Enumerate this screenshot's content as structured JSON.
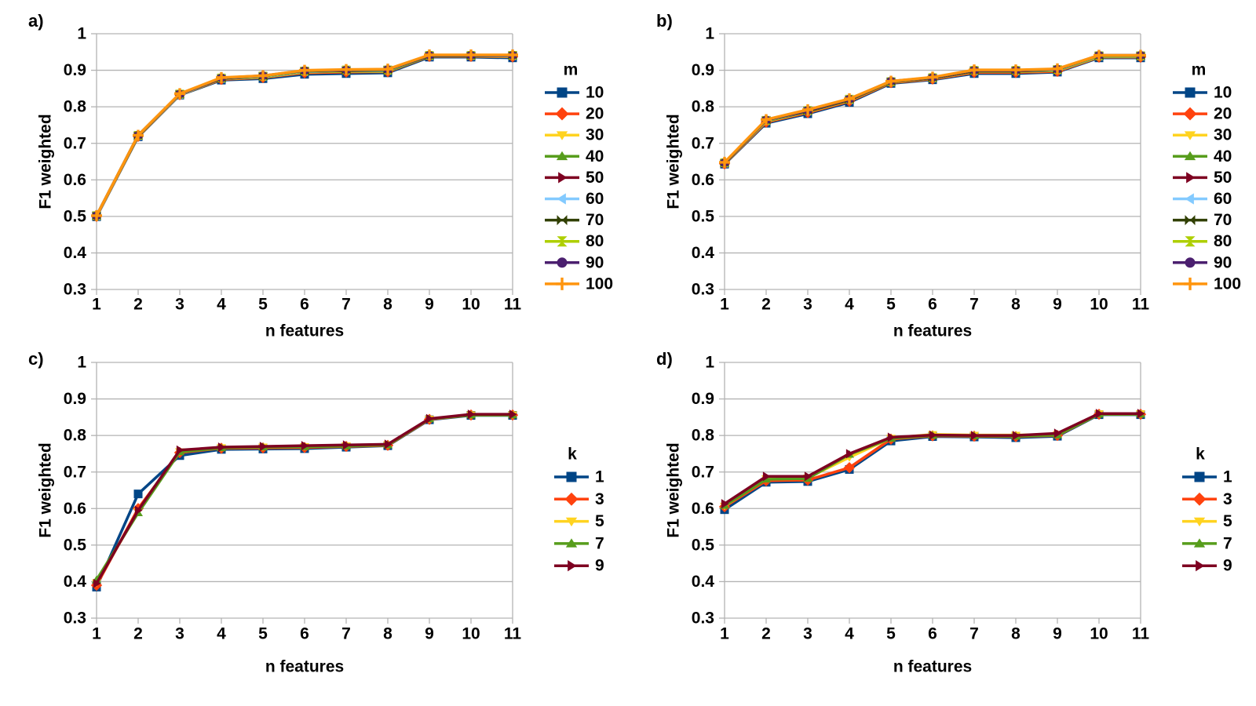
{
  "page": {
    "background": "#ffffff",
    "text_color": "#000000",
    "grid_color": "#b3b3b3"
  },
  "chart_data": [
    {
      "type": "line",
      "panel": "a)",
      "xlabel": "n features",
      "ylabel": "F1 weighted",
      "x": [
        1,
        2,
        3,
        4,
        5,
        6,
        7,
        8,
        9,
        10,
        11
      ],
      "xtick_labels": [
        "1",
        "2",
        "3",
        "4",
        "5",
        "6",
        "7",
        "8",
        "9",
        "10",
        "11"
      ],
      "ylim": [
        0.3,
        1.0
      ],
      "ytick_values": [
        0.3,
        0.4,
        0.5,
        0.6,
        0.7,
        0.8,
        0.9,
        1.0
      ],
      "ytick_labels": [
        "0.3",
        "0.4",
        "0.5",
        "0.6",
        "0.7",
        "0.8",
        "0.9",
        "1"
      ],
      "grid": "horizontal",
      "legend_position": "right",
      "legend_title": "m",
      "series": [
        {
          "name": "10",
          "color": "#004586",
          "marker": "square",
          "values": [
            0.499,
            0.718,
            0.832,
            0.873,
            0.877,
            0.889,
            0.891,
            0.893,
            0.936,
            0.936,
            0.934
          ]
        },
        {
          "name": "20",
          "color": "#FF420E",
          "marker": "diamond",
          "values": [
            0.5,
            0.719,
            0.833,
            0.875,
            0.88,
            0.893,
            0.895,
            0.896,
            0.938,
            0.938,
            0.937
          ]
        },
        {
          "name": "30",
          "color": "#FFD320",
          "marker": "triangle-down",
          "values": [
            0.5,
            0.72,
            0.833,
            0.876,
            0.881,
            0.895,
            0.897,
            0.897,
            0.939,
            0.939,
            0.938
          ]
        },
        {
          "name": "40",
          "color": "#579D1C",
          "marker": "triangle-up",
          "values": [
            0.501,
            0.72,
            0.834,
            0.877,
            0.882,
            0.896,
            0.898,
            0.898,
            0.939,
            0.939,
            0.939
          ]
        },
        {
          "name": "50",
          "color": "#7E0021",
          "marker": "triangle-right",
          "values": [
            0.501,
            0.721,
            0.834,
            0.877,
            0.883,
            0.897,
            0.899,
            0.9,
            0.94,
            0.94,
            0.94
          ]
        },
        {
          "name": "60",
          "color": "#83CAFF",
          "marker": "triangle-left",
          "values": [
            0.501,
            0.721,
            0.834,
            0.878,
            0.883,
            0.897,
            0.9,
            0.9,
            0.94,
            0.94,
            0.94
          ]
        },
        {
          "name": "70",
          "color": "#314004",
          "marker": "bowtie",
          "values": [
            0.502,
            0.721,
            0.835,
            0.878,
            0.884,
            0.898,
            0.9,
            0.901,
            0.94,
            0.94,
            0.941
          ]
        },
        {
          "name": "80",
          "color": "#AECF00",
          "marker": "hourglass",
          "values": [
            0.502,
            0.722,
            0.835,
            0.879,
            0.884,
            0.898,
            0.901,
            0.901,
            0.941,
            0.941,
            0.941
          ]
        },
        {
          "name": "90",
          "color": "#4B1F6F",
          "marker": "circle",
          "values": [
            0.502,
            0.722,
            0.835,
            0.879,
            0.885,
            0.899,
            0.901,
            0.902,
            0.941,
            0.941,
            0.941
          ]
        },
        {
          "name": "100",
          "color": "#FF950E",
          "marker": "plus",
          "values": [
            0.502,
            0.722,
            0.836,
            0.88,
            0.885,
            0.9,
            0.902,
            0.903,
            0.942,
            0.942,
            0.942
          ]
        }
      ]
    },
    {
      "type": "line",
      "panel": "b)",
      "xlabel": "n features",
      "ylabel": "F1 weighted",
      "x": [
        1,
        2,
        3,
        4,
        5,
        6,
        7,
        8,
        9,
        10,
        11
      ],
      "xtick_labels": [
        "1",
        "2",
        "3",
        "4",
        "5",
        "6",
        "7",
        "8",
        "9",
        "10",
        "11"
      ],
      "ylim": [
        0.3,
        1.0
      ],
      "ytick_values": [
        0.3,
        0.4,
        0.5,
        0.6,
        0.7,
        0.8,
        0.9,
        1.0
      ],
      "ytick_labels": [
        "0.3",
        "0.4",
        "0.5",
        "0.6",
        "0.7",
        "0.8",
        "0.9",
        "1"
      ],
      "grid": "horizontal",
      "legend_position": "right",
      "legend_title": "m",
      "series": [
        {
          "name": "10",
          "color": "#004586",
          "marker": "square",
          "values": [
            0.643,
            0.755,
            0.781,
            0.812,
            0.864,
            0.874,
            0.891,
            0.891,
            0.895,
            0.934,
            0.934
          ]
        },
        {
          "name": "20",
          "color": "#FF420E",
          "marker": "diamond",
          "values": [
            0.644,
            0.758,
            0.784,
            0.815,
            0.866,
            0.876,
            0.894,
            0.894,
            0.897,
            0.936,
            0.936
          ]
        },
        {
          "name": "30",
          "color": "#FFD320",
          "marker": "triangle-down",
          "values": [
            0.645,
            0.76,
            0.786,
            0.817,
            0.867,
            0.877,
            0.896,
            0.896,
            0.899,
            0.937,
            0.937
          ]
        },
        {
          "name": "40",
          "color": "#579D1C",
          "marker": "triangle-up",
          "values": [
            0.645,
            0.761,
            0.787,
            0.818,
            0.868,
            0.878,
            0.897,
            0.897,
            0.9,
            0.938,
            0.938
          ]
        },
        {
          "name": "50",
          "color": "#7E0021",
          "marker": "triangle-right",
          "values": [
            0.646,
            0.762,
            0.788,
            0.819,
            0.868,
            0.878,
            0.898,
            0.898,
            0.901,
            0.939,
            0.939
          ]
        },
        {
          "name": "60",
          "color": "#83CAFF",
          "marker": "triangle-left",
          "values": [
            0.646,
            0.762,
            0.789,
            0.82,
            0.869,
            0.879,
            0.899,
            0.899,
            0.901,
            0.939,
            0.939
          ]
        },
        {
          "name": "70",
          "color": "#314004",
          "marker": "bowtie",
          "values": [
            0.646,
            0.763,
            0.789,
            0.82,
            0.869,
            0.879,
            0.899,
            0.899,
            0.902,
            0.94,
            0.94
          ]
        },
        {
          "name": "80",
          "color": "#AECF00",
          "marker": "hourglass",
          "values": [
            0.647,
            0.763,
            0.79,
            0.821,
            0.869,
            0.88,
            0.9,
            0.9,
            0.902,
            0.94,
            0.94
          ]
        },
        {
          "name": "90",
          "color": "#4B1F6F",
          "marker": "circle",
          "values": [
            0.647,
            0.764,
            0.79,
            0.821,
            0.87,
            0.88,
            0.9,
            0.9,
            0.903,
            0.941,
            0.941
          ]
        },
        {
          "name": "100",
          "color": "#FF950E",
          "marker": "plus",
          "values": [
            0.648,
            0.765,
            0.792,
            0.822,
            0.87,
            0.881,
            0.901,
            0.901,
            0.904,
            0.941,
            0.941
          ]
        }
      ]
    },
    {
      "type": "line",
      "panel": "c)",
      "xlabel": "n features",
      "ylabel": "F1 weighted",
      "x": [
        1,
        2,
        3,
        4,
        5,
        6,
        7,
        8,
        9,
        10,
        11
      ],
      "xtick_labels": [
        "1",
        "2",
        "3",
        "4",
        "5",
        "6",
        "7",
        "8",
        "9",
        "10",
        "11"
      ],
      "ylim": [
        0.3,
        1.0
      ],
      "ytick_values": [
        0.3,
        0.4,
        0.5,
        0.6,
        0.7,
        0.8,
        0.9,
        1.0
      ],
      "ytick_labels": [
        "0.3",
        "0.4",
        "0.5",
        "0.6",
        "0.7",
        "0.8",
        "0.9",
        "1"
      ],
      "grid": "horizontal",
      "legend_position": "right",
      "legend_title": "k",
      "series": [
        {
          "name": "1",
          "color": "#004586",
          "marker": "square",
          "values": [
            0.385,
            0.64,
            0.745,
            0.762,
            0.763,
            0.764,
            0.768,
            0.772,
            0.843,
            0.855,
            0.855
          ]
        },
        {
          "name": "3",
          "color": "#FF420E",
          "marker": "diamond",
          "values": [
            0.39,
            0.6,
            0.753,
            0.765,
            0.766,
            0.767,
            0.77,
            0.773,
            0.844,
            0.856,
            0.856
          ]
        },
        {
          "name": "5",
          "color": "#FFD320",
          "marker": "triangle-down",
          "values": [
            0.397,
            0.592,
            0.756,
            0.767,
            0.769,
            0.77,
            0.772,
            0.775,
            0.845,
            0.857,
            0.857
          ]
        },
        {
          "name": "7",
          "color": "#579D1C",
          "marker": "triangle-up",
          "values": [
            0.405,
            0.588,
            0.755,
            0.766,
            0.768,
            0.769,
            0.771,
            0.774,
            0.845,
            0.856,
            0.856
          ]
        },
        {
          "name": "9",
          "color": "#7E0021",
          "marker": "triangle-right",
          "values": [
            0.395,
            0.595,
            0.76,
            0.768,
            0.77,
            0.772,
            0.774,
            0.776,
            0.846,
            0.858,
            0.858
          ]
        }
      ]
    },
    {
      "type": "line",
      "panel": "d)",
      "xlabel": "n features",
      "ylabel": "F1 weighted",
      "x": [
        1,
        2,
        3,
        4,
        5,
        6,
        7,
        8,
        9,
        10,
        11
      ],
      "xtick_labels": [
        "1",
        "2",
        "3",
        "4",
        "5",
        "6",
        "7",
        "8",
        "9",
        "10",
        "11"
      ],
      "ylim": [
        0.3,
        1.0
      ],
      "ytick_values": [
        0.3,
        0.4,
        0.5,
        0.6,
        0.7,
        0.8,
        0.9,
        1.0
      ],
      "ytick_labels": [
        "0.3",
        "0.4",
        "0.5",
        "0.6",
        "0.7",
        "0.8",
        "0.9",
        "1"
      ],
      "grid": "horizontal",
      "legend_position": "right",
      "legend_title": "k",
      "series": [
        {
          "name": "1",
          "color": "#004586",
          "marker": "square",
          "values": [
            0.597,
            0.672,
            0.674,
            0.707,
            0.785,
            0.797,
            0.796,
            0.794,
            0.798,
            0.857,
            0.857
          ]
        },
        {
          "name": "3",
          "color": "#FF420E",
          "marker": "diamond",
          "values": [
            0.605,
            0.676,
            0.678,
            0.712,
            0.79,
            0.799,
            0.798,
            0.797,
            0.8,
            0.858,
            0.858
          ]
        },
        {
          "name": "5",
          "color": "#FFD320",
          "marker": "triangle-down",
          "values": [
            0.607,
            0.682,
            0.684,
            0.74,
            0.793,
            0.803,
            0.801,
            0.801,
            0.803,
            0.86,
            0.86
          ]
        },
        {
          "name": "7",
          "color": "#579D1C",
          "marker": "triangle-up",
          "values": [
            0.608,
            0.68,
            0.682,
            0.748,
            0.792,
            0.8,
            0.799,
            0.798,
            0.801,
            0.858,
            0.858
          ]
        },
        {
          "name": "9",
          "color": "#7E0021",
          "marker": "triangle-right",
          "values": [
            0.613,
            0.688,
            0.688,
            0.75,
            0.795,
            0.801,
            0.8,
            0.8,
            0.806,
            0.86,
            0.86
          ]
        }
      ]
    }
  ]
}
